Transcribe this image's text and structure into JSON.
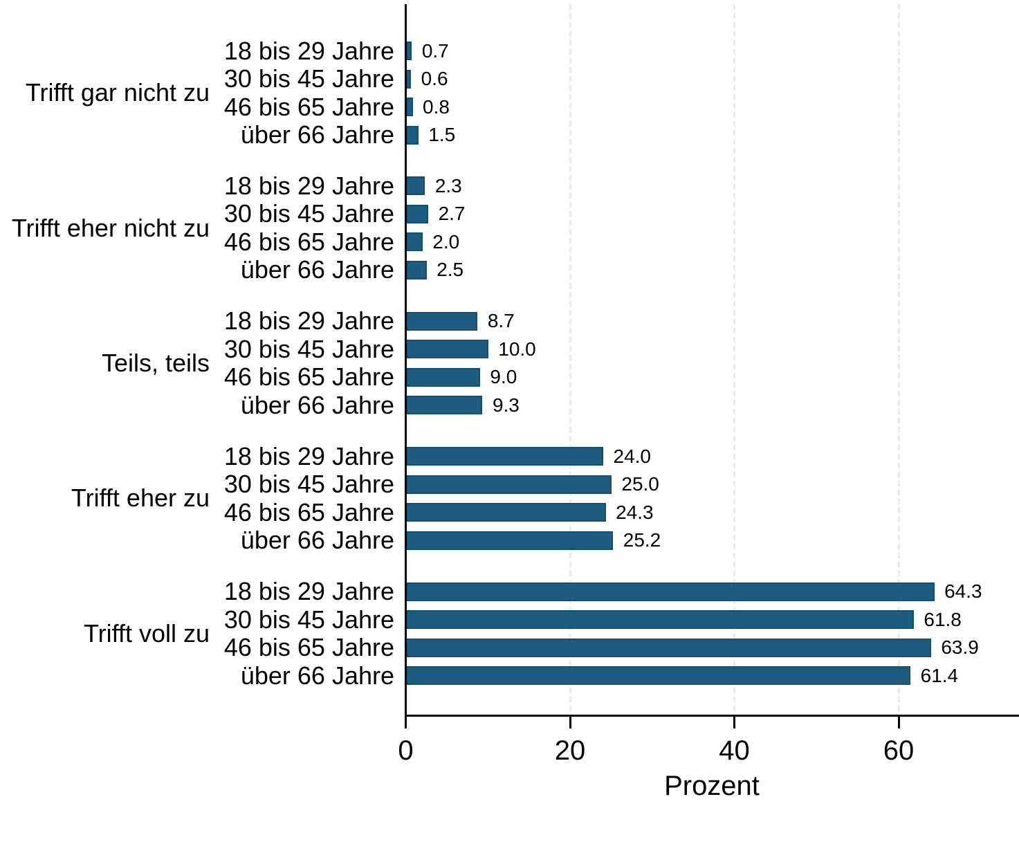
{
  "chart_data": {
    "type": "bar",
    "orientation": "horizontal",
    "title": "",
    "xlabel": "Prozent",
    "ylabel": "",
    "x_ticks": [
      "0",
      "20",
      "40",
      "60"
    ],
    "x_tick_values": [
      0,
      20,
      40,
      60
    ],
    "x_max": 74.5,
    "grid": "dashed-vertical-gridlines-at-ticks",
    "legend": null,
    "categories": [
      "18 bis 29 Jahre",
      "30 bis 45 Jahre",
      "46 bis 65 Jahre",
      "über 66 Jahre"
    ],
    "groups": [
      {
        "label": "Trifft gar nicht zu",
        "values": [
          0.7,
          0.6,
          0.8,
          1.5
        ],
        "value_labels": [
          "0.7",
          "0.6",
          "0.8",
          "1.5"
        ]
      },
      {
        "label": "Trifft eher nicht zu",
        "values": [
          2.3,
          2.7,
          2.0,
          2.5
        ],
        "value_labels": [
          "2.3",
          "2.7",
          "2.0",
          "2.5"
        ]
      },
      {
        "label": "Teils, teils",
        "values": [
          8.7,
          10.0,
          9.0,
          9.3
        ],
        "value_labels": [
          "8.7",
          "10.0",
          "9.0",
          "9.3"
        ]
      },
      {
        "label": "Trifft eher zu",
        "values": [
          24.0,
          25.0,
          24.3,
          25.2
        ],
        "value_labels": [
          "24.0",
          "25.0",
          "24.3",
          "25.2"
        ]
      },
      {
        "label": "Trifft voll zu",
        "values": [
          64.3,
          61.8,
          63.9,
          61.4
        ],
        "value_labels": [
          "64.3",
          "61.8",
          "63.9",
          "61.4"
        ]
      }
    ],
    "colors": {
      "bar_fill": "#1e5c80",
      "bar_border": "#124e70",
      "grid_line": "#eaeaea",
      "axis": "#000000",
      "text": "#000000"
    }
  }
}
